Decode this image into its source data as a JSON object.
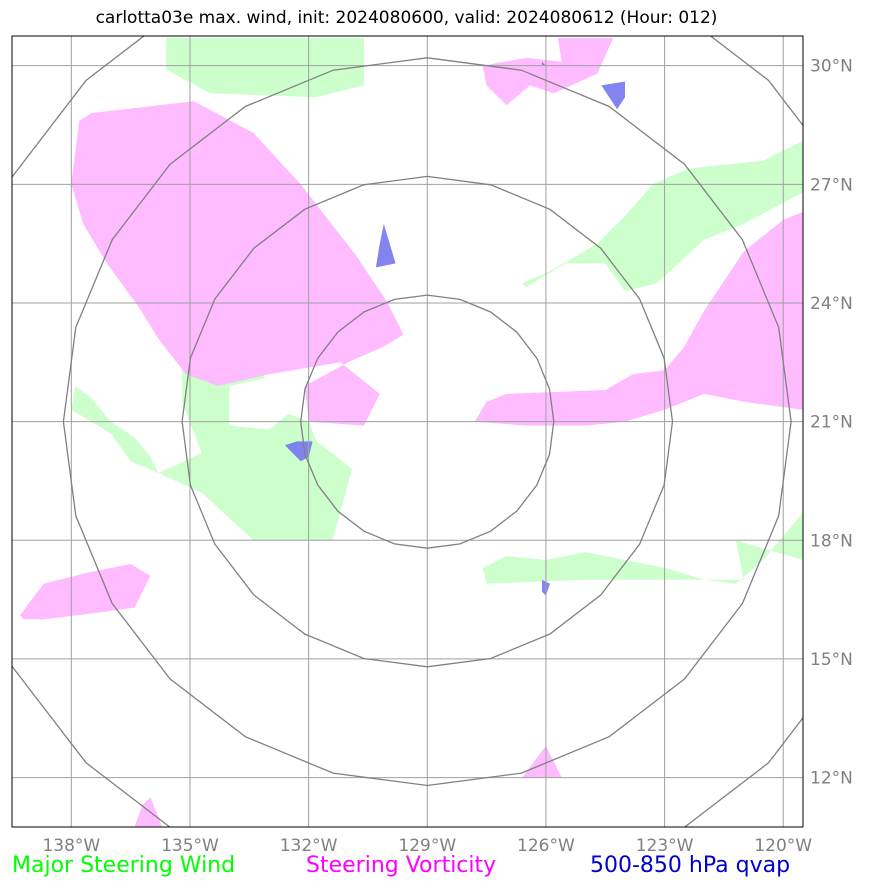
{
  "title": "carlotta03e max. wind, init: 2024080600, valid: 2024080612 (Hour: 012)",
  "map": {
    "lon_range": [
      -139.5,
      -119.5
    ],
    "lat_range": [
      10.75,
      30.75
    ],
    "center": {
      "lon": -129,
      "lat": 21
    },
    "lon_ticks": [
      {
        "value": -138,
        "label": "138°W"
      },
      {
        "value": -135,
        "label": "135°W"
      },
      {
        "value": -132,
        "label": "132°W"
      },
      {
        "value": -129,
        "label": "129°W"
      },
      {
        "value": -126,
        "label": "126°W"
      },
      {
        "value": -123,
        "label": "123°W"
      },
      {
        "value": -120,
        "label": "120°W"
      }
    ],
    "lat_ticks": [
      {
        "value": 30,
        "label": "30°N"
      },
      {
        "value": 27,
        "label": "27°N"
      },
      {
        "value": 24,
        "label": "24°N"
      },
      {
        "value": 21,
        "label": "21°N"
      },
      {
        "value": 18,
        "label": "18°N"
      },
      {
        "value": 15,
        "label": "15°N"
      },
      {
        "value": 12,
        "label": "12°N"
      }
    ],
    "range_rings_deg": [
      3.2,
      6.2,
      9.2,
      12.2
    ]
  },
  "layers": [
    {
      "name": "Major Steering Wind",
      "color": "#ccffcc",
      "polygons": [
        [
          [
            -135.6,
            30.7
          ],
          [
            -130.6,
            30.7
          ],
          [
            -130.6,
            29.5
          ],
          [
            -131.8,
            29.2
          ],
          [
            -134.5,
            29.3
          ],
          [
            -135.6,
            29.9
          ]
        ],
        [
          [
            -126.6,
            24.5
          ],
          [
            -125.9,
            24.8
          ],
          [
            -124.7,
            25.5
          ],
          [
            -124.0,
            26.2
          ],
          [
            -123.3,
            27.0
          ],
          [
            -122.4,
            27.4
          ],
          [
            -120.5,
            27.6
          ],
          [
            -119.5,
            28.1
          ],
          [
            -119.5,
            26.8
          ],
          [
            -121.0,
            26.0
          ],
          [
            -122.0,
            25.6
          ],
          [
            -123.2,
            24.5
          ],
          [
            -124.0,
            24.3
          ],
          [
            -124.5,
            25.0
          ],
          [
            -125.5,
            25.0
          ],
          [
            -126.5,
            24.4
          ]
        ],
        [
          [
            -135.2,
            23.0
          ],
          [
            -134.7,
            23.0
          ],
          [
            -133.3,
            22.6
          ],
          [
            -133.1,
            22.1
          ],
          [
            -134.0,
            21.9
          ],
          [
            -134.0,
            20.9
          ],
          [
            -133.0,
            20.8
          ],
          [
            -132.5,
            21.2
          ],
          [
            -132.0,
            21.0
          ],
          [
            -131.8,
            20.5
          ],
          [
            -131.4,
            20.2
          ],
          [
            -130.9,
            19.8
          ],
          [
            -131.4,
            18.0
          ],
          [
            -133.4,
            18.0
          ],
          [
            -134.7,
            19.2
          ],
          [
            -135.8,
            19.7
          ],
          [
            -136.0,
            20.1
          ],
          [
            -136.4,
            20.6
          ],
          [
            -137.0,
            21.0
          ],
          [
            -137.5,
            21.6
          ],
          [
            -137.9,
            21.9
          ],
          [
            -138.0,
            21.3
          ],
          [
            -137.0,
            20.7
          ],
          [
            -136.5,
            20.0
          ],
          [
            -135.8,
            19.7
          ],
          [
            -134.7,
            20.2
          ],
          [
            -135.2,
            21.5
          ]
        ],
        [
          [
            -125.5,
            19.8
          ],
          [
            -124.5,
            19.5
          ],
          [
            -123.0,
            18.8
          ],
          [
            -122.0,
            18.6
          ],
          [
            -121.2,
            18.0
          ],
          [
            -121.0,
            17.0
          ],
          [
            -122.0,
            17.0
          ],
          [
            -123.0,
            17.3
          ],
          [
            -124.0,
            17.5
          ],
          [
            -125.0,
            17.7
          ],
          [
            -126.0,
            17.5
          ],
          [
            -127.0,
            17.6
          ],
          [
            -127.6,
            17.3
          ],
          [
            -127.5,
            16.9
          ],
          [
            -125.0,
            17.0
          ],
          [
            -122.0,
            17.0
          ],
          [
            -121.2,
            16.9
          ],
          [
            -120.5,
            17.5
          ],
          [
            -120.0,
            18.1
          ],
          [
            -119.5,
            18.7
          ],
          [
            -119.5,
            17.5
          ],
          [
            -121.2,
            18.0
          ],
          [
            -122.0,
            18.6
          ],
          [
            -123.0,
            18.8
          ],
          [
            -124.5,
            19.5
          ]
        ]
      ]
    },
    {
      "name": "Steering Vorticity",
      "color": "#ffbbff",
      "polygons": [
        [
          [
            -125.7,
            30.7
          ],
          [
            -124.3,
            30.7
          ],
          [
            -124.7,
            29.8
          ],
          [
            -125.8,
            29.3
          ],
          [
            -126.4,
            29.5
          ],
          [
            -127.0,
            29.0
          ],
          [
            -127.5,
            29.5
          ],
          [
            -127.6,
            30.0
          ],
          [
            -126.5,
            30.2
          ],
          [
            -125.6,
            30.1
          ]
        ],
        [
          [
            -137.8,
            28.6
          ],
          [
            -137.5,
            28.8
          ],
          [
            -134.9,
            29.1
          ],
          [
            -133.4,
            28.3
          ],
          [
            -132.2,
            27.0
          ],
          [
            -130.8,
            25.2
          ],
          [
            -130.0,
            24.0
          ],
          [
            -129.6,
            23.2
          ],
          [
            -130.1,
            22.9
          ],
          [
            -131.0,
            22.5
          ],
          [
            -132.1,
            21.9
          ],
          [
            -132.0,
            21.0
          ],
          [
            -130.6,
            20.9
          ],
          [
            -130.2,
            21.7
          ],
          [
            -131.2,
            22.5
          ],
          [
            -133.0,
            22.2
          ],
          [
            -134.3,
            21.9
          ],
          [
            -135.1,
            22.2
          ],
          [
            -135.8,
            23.1
          ],
          [
            -136.3,
            23.9
          ],
          [
            -137.1,
            25.0
          ],
          [
            -137.7,
            26.0
          ],
          [
            -138.0,
            27.0
          ]
        ],
        [
          [
            -127.8,
            21.0
          ],
          [
            -127.5,
            21.5
          ],
          [
            -127.0,
            21.7
          ],
          [
            -124.5,
            21.8
          ],
          [
            -123.8,
            22.2
          ],
          [
            -123.0,
            22.3
          ],
          [
            -122.5,
            22.9
          ],
          [
            -122.0,
            23.8
          ],
          [
            -121.0,
            25.3
          ],
          [
            -120.0,
            26.1
          ],
          [
            -119.5,
            26.3
          ],
          [
            -119.5,
            21.3
          ],
          [
            -121.0,
            21.5
          ],
          [
            -122.0,
            21.7
          ],
          [
            -123.0,
            21.3
          ],
          [
            -124.0,
            21.0
          ],
          [
            -125.0,
            20.9
          ],
          [
            -126.5,
            20.9
          ]
        ],
        [
          [
            -139.3,
            16.1
          ],
          [
            -138.7,
            16.9
          ],
          [
            -137.5,
            17.2
          ],
          [
            -136.5,
            17.4
          ],
          [
            -136.0,
            17.1
          ],
          [
            -136.4,
            16.3
          ],
          [
            -137.1,
            16.2
          ],
          [
            -138.7,
            16.0
          ],
          [
            -139.2,
            16.0
          ]
        ],
        [
          [
            -126.6,
            12.0
          ],
          [
            -126.0,
            12.8
          ],
          [
            -125.6,
            12.0
          ]
        ],
        [
          [
            -136.1,
            10.75
          ],
          [
            -135.7,
            10.75
          ],
          [
            -136.0,
            11.5
          ],
          [
            -136.2,
            11.3
          ],
          [
            -136.4,
            10.75
          ]
        ]
      ]
    },
    {
      "name": "500-850 hPa qvap",
      "color": "#7777ee",
      "polygons": [
        [
          [
            -126.0,
            30.0
          ],
          [
            -126.1,
            30.1
          ],
          [
            -126.1,
            30.0
          ]
        ],
        [
          [
            -124.6,
            29.5
          ],
          [
            -124.0,
            29.6
          ],
          [
            -124.0,
            29.2
          ],
          [
            -124.2,
            28.9
          ]
        ],
        [
          [
            -130.1,
            26.0
          ],
          [
            -129.8,
            25.0
          ],
          [
            -130.3,
            24.9
          ],
          [
            -130.2,
            25.5
          ]
        ],
        [
          [
            -132.6,
            20.4
          ],
          [
            -132.3,
            20.5
          ],
          [
            -131.9,
            20.5
          ],
          [
            -132.0,
            20.1
          ],
          [
            -132.2,
            20.0
          ]
        ],
        [
          [
            -126.1,
            17.0
          ],
          [
            -125.9,
            16.9
          ],
          [
            -126.0,
            16.6
          ],
          [
            -126.1,
            16.7
          ]
        ]
      ]
    }
  ],
  "legend": [
    {
      "label": "Major Steering Wind",
      "color": "#00ff00"
    },
    {
      "label": "Steering Vorticity",
      "color": "#ff00ff"
    },
    {
      "label": "500-850 hPa qvap",
      "color": "#0000cc"
    }
  ]
}
